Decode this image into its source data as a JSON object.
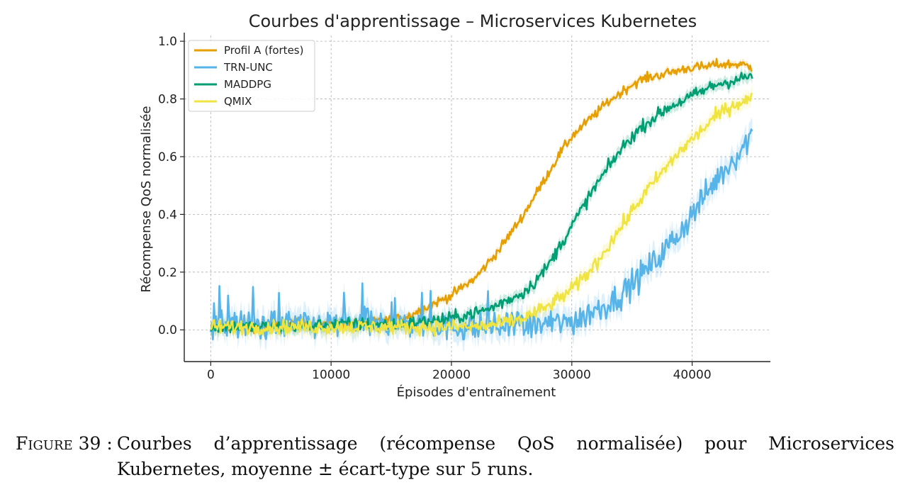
{
  "chart_data": {
    "type": "line",
    "title": "Courbes d'apprentissage – Microservices Kubernetes",
    "xlabel": "Épisodes d'entraînement",
    "ylabel": "Récompense QoS normalisée",
    "xlim": [
      -2200,
      46500
    ],
    "ylim": [
      -0.11,
      1.02
    ],
    "xticks": [
      0,
      10000,
      20000,
      30000,
      40000
    ],
    "xtick_labels": [
      "0",
      "10000",
      "20000",
      "30000",
      "40000"
    ],
    "yticks": [
      0.0,
      0.2,
      0.4,
      0.6,
      0.8,
      1.0
    ],
    "ytick_labels": [
      "0.0",
      "0.2",
      "0.4",
      "0.6",
      "0.8",
      "1.0"
    ],
    "grid": true,
    "legend_position": "top-left",
    "series": [
      {
        "name": "Profil A (fortes)",
        "color": "#E69F00",
        "std_band": 0.012,
        "x": [
          0,
          2000,
          4000,
          6000,
          8000,
          10000,
          12000,
          14000,
          16000,
          17000,
          18000,
          19000,
          20000,
          21000,
          22000,
          23000,
          24000,
          25000,
          26000,
          27000,
          28000,
          29000,
          30000,
          31000,
          32000,
          33000,
          34000,
          35000,
          36000,
          37000,
          38000,
          39000,
          40000,
          41000,
          42000,
          43000,
          44000,
          45000
        ],
        "y": [
          0.01,
          0.01,
          0.01,
          0.02,
          0.02,
          0.02,
          0.02,
          0.03,
          0.04,
          0.06,
          0.08,
          0.1,
          0.12,
          0.15,
          0.18,
          0.23,
          0.28,
          0.34,
          0.4,
          0.47,
          0.54,
          0.61,
          0.67,
          0.71,
          0.75,
          0.79,
          0.82,
          0.85,
          0.87,
          0.88,
          0.89,
          0.9,
          0.91,
          0.91,
          0.92,
          0.92,
          0.92,
          0.91
        ]
      },
      {
        "name": "TRN-UNC",
        "color": "#56B4E9",
        "std_band": 0.04,
        "x": [
          0,
          2000,
          4000,
          6000,
          8000,
          10000,
          12000,
          14000,
          16000,
          18000,
          20000,
          22000,
          24000,
          26000,
          28000,
          30000,
          31000,
          32000,
          33000,
          34000,
          35000,
          36000,
          37000,
          38000,
          39000,
          40000,
          41000,
          42000,
          43000,
          44000,
          45000
        ],
        "y": [
          0.02,
          0.02,
          0.02,
          0.02,
          0.02,
          0.02,
          0.02,
          0.02,
          0.02,
          0.02,
          0.01,
          0.01,
          0.01,
          0.01,
          0.02,
          0.03,
          0.05,
          0.07,
          0.09,
          0.12,
          0.16,
          0.2,
          0.24,
          0.29,
          0.34,
          0.4,
          0.46,
          0.52,
          0.57,
          0.62,
          0.68
        ]
      },
      {
        "name": "MADDPG",
        "color": "#009E73",
        "std_band": 0.02,
        "x": [
          0,
          2000,
          4000,
          6000,
          8000,
          10000,
          12000,
          14000,
          16000,
          18000,
          20000,
          21000,
          22000,
          23000,
          24000,
          25000,
          26000,
          27000,
          28000,
          29000,
          30000,
          31000,
          32000,
          33000,
          34000,
          35000,
          36000,
          37000,
          38000,
          39000,
          40000,
          41000,
          42000,
          43000,
          44000,
          45000
        ],
        "y": [
          0.01,
          0.01,
          0.01,
          0.01,
          0.01,
          0.02,
          0.02,
          0.02,
          0.02,
          0.03,
          0.04,
          0.05,
          0.06,
          0.07,
          0.09,
          0.11,
          0.13,
          0.17,
          0.22,
          0.29,
          0.36,
          0.43,
          0.5,
          0.56,
          0.62,
          0.67,
          0.71,
          0.74,
          0.77,
          0.79,
          0.81,
          0.83,
          0.85,
          0.86,
          0.87,
          0.88
        ]
      },
      {
        "name": "QMIX",
        "color": "#F0E442",
        "std_band": 0.025,
        "x": [
          0,
          2000,
          4000,
          6000,
          8000,
          10000,
          12000,
          14000,
          16000,
          18000,
          20000,
          22000,
          24000,
          25000,
          26000,
          27000,
          28000,
          29000,
          30000,
          31000,
          32000,
          33000,
          34000,
          35000,
          36000,
          37000,
          38000,
          39000,
          40000,
          41000,
          42000,
          43000,
          44000,
          45000
        ],
        "y": [
          0.01,
          0.01,
          0.01,
          0.01,
          0.01,
          0.01,
          0.01,
          0.01,
          0.01,
          0.01,
          0.01,
          0.01,
          0.02,
          0.03,
          0.04,
          0.06,
          0.08,
          0.11,
          0.14,
          0.18,
          0.23,
          0.29,
          0.35,
          0.41,
          0.47,
          0.52,
          0.57,
          0.62,
          0.66,
          0.7,
          0.74,
          0.77,
          0.79,
          0.8
        ]
      }
    ]
  },
  "caption": {
    "label": "Figure 39 :",
    "text": "Courbes d’apprentissage (récompense QoS normalisée) pour Microservices Kubernetes, moyenne ± écart-type sur 5 runs."
  }
}
